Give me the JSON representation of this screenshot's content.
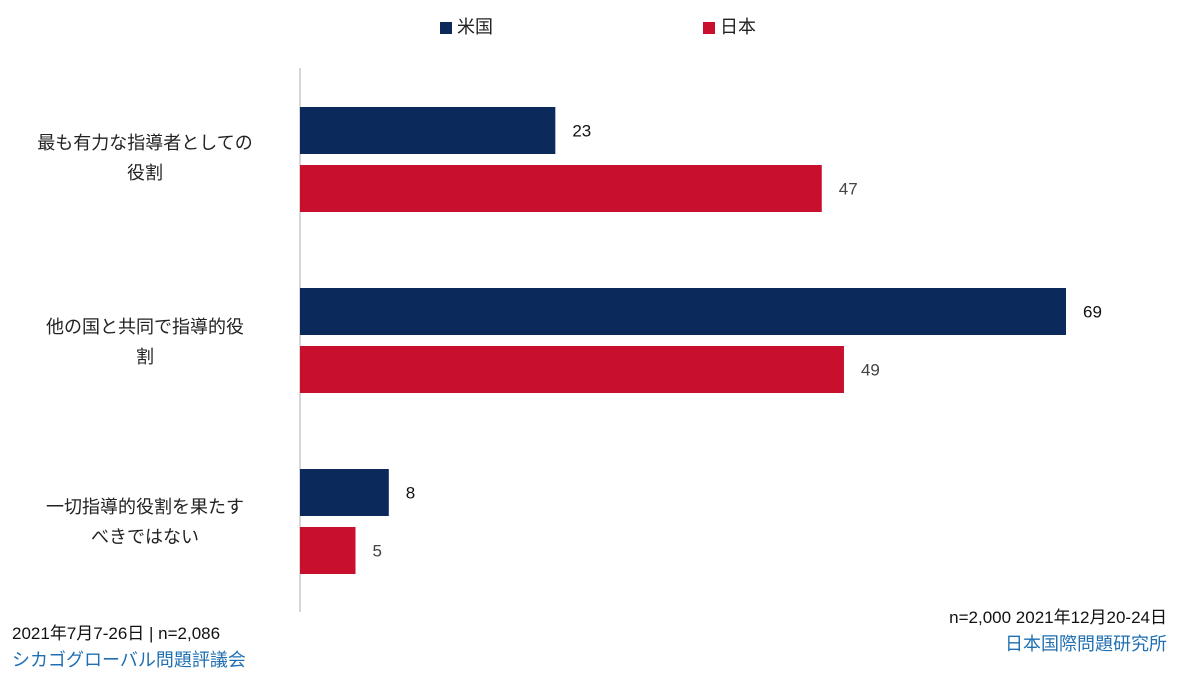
{
  "chart_data": {
    "type": "bar",
    "orientation": "horizontal",
    "categories": [
      "最も有力な指導者としての役割",
      "他の国と共同で指導的役割",
      "一切指導的役割を果たすべきではない"
    ],
    "category_lines": [
      [
        "最も有力な指導者としての",
        "役割"
      ],
      [
        "他の国と共同で指導的役",
        "割"
      ],
      [
        "一切指導的役割を果たす",
        "べきではない"
      ]
    ],
    "series": [
      {
        "name": "米国",
        "color": "#0b2a5b",
        "values": [
          23,
          69,
          8
        ]
      },
      {
        "name": "日本",
        "color": "#c8102e",
        "values": [
          47,
          49,
          5
        ]
      }
    ],
    "legend": {
      "marker": "■",
      "position": "top"
    },
    "xlim": [
      0,
      70
    ],
    "grid": false,
    "data_labels": true
  },
  "footer": {
    "left": {
      "meta": "2021年7月7-26日 | n=2,086",
      "org": "シカゴグローバル問題評議会",
      "org_color": "#1f6fb2"
    },
    "right": {
      "meta": "n=2,000 2021年12月20-24日",
      "org": "日本国際問題研究所",
      "org_color": "#1f6fb2"
    }
  }
}
